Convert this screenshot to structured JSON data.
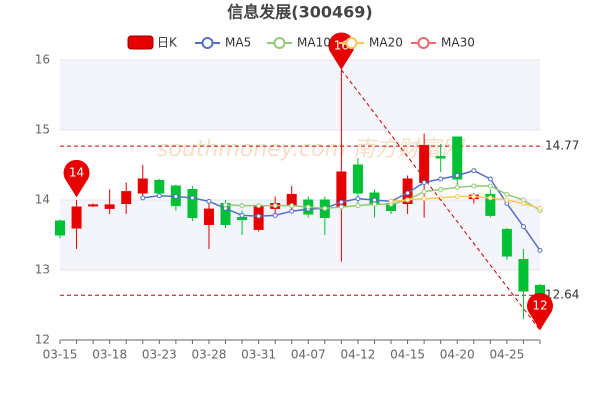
{
  "chart_data": {
    "type": "candlestick",
    "title": "信息发展(300469)",
    "watermark": "southmoney.com 南方财富网",
    "categories": [
      "03-15",
      null,
      null,
      "03-18",
      null,
      null,
      "03-23",
      null,
      null,
      "03-28",
      null,
      null,
      "03-31",
      null,
      null,
      "04-07",
      null,
      null,
      "04-12",
      null,
      null,
      "04-15",
      null,
      null,
      "04-20",
      null,
      null,
      "04-25",
      null,
      null
    ],
    "ylim": [
      12,
      16
    ],
    "yticks": [
      12,
      13,
      14,
      15,
      16
    ],
    "up_color": "#e60000",
    "down_color": "#00c035",
    "candle": {
      "name": "日K",
      "open": [
        13.7,
        13.6,
        13.92,
        13.88,
        13.95,
        14.1,
        14.28,
        14.2,
        14.15,
        13.65,
        13.95,
        13.75,
        13.58,
        13.88,
        13.92,
        14.0,
        14.0,
        13.9,
        14.5,
        14.1,
        13.95,
        13.95,
        14.25,
        14.62,
        14.9,
        14.02,
        14.08,
        13.58,
        13.15,
        12.78
      ],
      "close": [
        13.5,
        13.9,
        13.93,
        13.93,
        14.12,
        14.3,
        14.1,
        13.92,
        13.75,
        13.87,
        13.65,
        13.72,
        13.92,
        13.95,
        14.08,
        13.8,
        13.75,
        14.4,
        14.1,
        13.95,
        13.85,
        14.3,
        14.78,
        14.6,
        14.3,
        14.07,
        13.78,
        13.2,
        12.7,
        12.64
      ],
      "low": [
        13.45,
        13.3,
        13.9,
        13.8,
        13.8,
        14.0,
        14.05,
        13.85,
        13.7,
        13.3,
        13.6,
        13.5,
        13.55,
        13.8,
        13.85,
        13.75,
        13.5,
        13.12,
        13.9,
        13.75,
        13.8,
        13.8,
        13.75,
        14.4,
        14.2,
        13.95,
        13.75,
        13.15,
        12.3,
        12.14
      ],
      "high": [
        13.72,
        14.0,
        13.95,
        14.15,
        14.25,
        14.5,
        14.3,
        14.22,
        14.2,
        14.0,
        14.0,
        13.85,
        13.95,
        14.05,
        14.2,
        14.05,
        14.05,
        15.86,
        14.6,
        14.15,
        14.0,
        14.35,
        14.95,
        14.8,
        14.9,
        14.1,
        14.15,
        13.6,
        13.3,
        12.8
      ]
    },
    "series": [
      {
        "name": "MA5",
        "color": "#5470c6",
        "values": [
          null,
          null,
          null,
          null,
          null,
          14.03,
          14.06,
          14.05,
          14.03,
          13.98,
          13.88,
          13.78,
          13.77,
          13.78,
          13.84,
          13.87,
          13.88,
          13.97,
          14.02,
          14.0,
          13.98,
          14.1,
          14.25,
          14.3,
          14.35,
          14.42,
          14.3,
          13.95,
          13.62,
          13.28
        ]
      },
      {
        "name": "MA10",
        "color": "#91cc75",
        "values": [
          null,
          null,
          null,
          null,
          null,
          null,
          null,
          null,
          null,
          null,
          13.93,
          13.92,
          13.92,
          13.92,
          13.92,
          13.9,
          13.88,
          13.9,
          13.92,
          13.94,
          13.94,
          14.0,
          14.12,
          14.15,
          14.18,
          14.2,
          14.2,
          14.08,
          14.0,
          13.85
        ]
      },
      {
        "name": "MA20",
        "color": "#fac858",
        "values": [
          null,
          null,
          null,
          null,
          null,
          null,
          null,
          null,
          null,
          null,
          null,
          null,
          null,
          null,
          null,
          null,
          null,
          null,
          null,
          null,
          13.98,
          14.0,
          14.02,
          14.03,
          14.05,
          14.05,
          14.03,
          14.0,
          13.95,
          13.88
        ]
      },
      {
        "name": "MA30",
        "color": "#ee6666",
        "values": [
          null,
          null,
          null,
          null,
          null,
          null,
          null,
          null,
          null,
          null,
          null,
          null,
          null,
          null,
          null,
          null,
          null,
          null,
          null,
          null,
          null,
          null,
          null,
          null,
          null,
          null,
          null,
          null,
          null,
          null
        ]
      }
    ],
    "mark_lines": [
      14.77,
      12.64
    ],
    "mark_points": [
      {
        "index": 1,
        "value": 14.04,
        "label": "14"
      },
      {
        "index": 17,
        "value": 15.86,
        "label": "16"
      },
      {
        "index": 29,
        "value": 12.14,
        "label": "12"
      }
    ]
  }
}
